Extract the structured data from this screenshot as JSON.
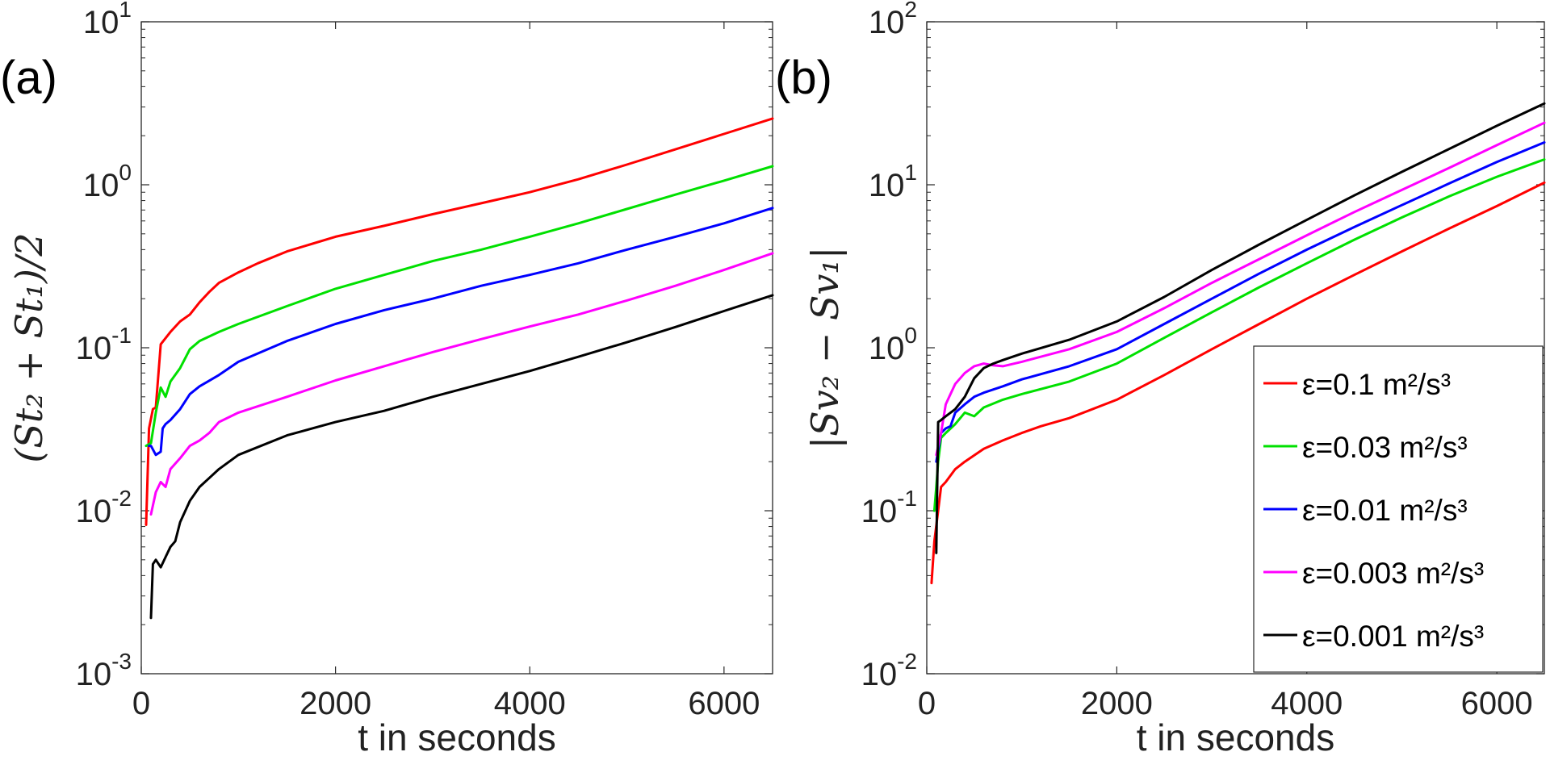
{
  "chart_data": [
    {
      "type": "line",
      "panel_label": "(a)",
      "xlabel": "t in seconds",
      "ylabel": "(St₂ + St₁)/2",
      "yscale": "log",
      "xlim": [
        0,
        6500
      ],
      "ylim": [
        0.001,
        10
      ],
      "x_ticks": [
        0,
        2000,
        4000,
        6000
      ],
      "x_tick_labels": [
        "0",
        "2000",
        "4000",
        "6000"
      ],
      "y_ticks": [
        0.001,
        0.01,
        0.1,
        1,
        10
      ],
      "y_tick_bases": [
        "10",
        "10",
        "10",
        "10",
        "10"
      ],
      "y_tick_exps": [
        "-3",
        "-2",
        "-1",
        "0",
        "1"
      ],
      "series": [
        {
          "name": "ε=0.1 m²/s³",
          "color": "#ff0000",
          "x": [
            50,
            80,
            120,
            150,
            200,
            300,
            400,
            500,
            600,
            700,
            800,
            1000,
            1200,
            1500,
            2000,
            2500,
            3000,
            3500,
            4000,
            4500,
            5000,
            5500,
            6000,
            6500
          ],
          "y": [
            0.0082,
            0.032,
            0.042,
            0.043,
            0.105,
            0.125,
            0.145,
            0.16,
            0.19,
            0.22,
            0.25,
            0.29,
            0.33,
            0.39,
            0.48,
            0.56,
            0.66,
            0.77,
            0.9,
            1.08,
            1.33,
            1.65,
            2.05,
            2.55
          ]
        },
        {
          "name": "ε=0.03 m²/s³",
          "color": "#00e000",
          "x": [
            50,
            100,
            150,
            200,
            250,
            300,
            400,
            500,
            600,
            800,
            1000,
            1500,
            2000,
            2500,
            3000,
            3500,
            4000,
            4500,
            5000,
            5500,
            6000,
            6500
          ],
          "y": [
            0.025,
            0.026,
            0.04,
            0.057,
            0.05,
            0.062,
            0.075,
            0.098,
            0.11,
            0.125,
            0.14,
            0.18,
            0.23,
            0.28,
            0.34,
            0.4,
            0.48,
            0.58,
            0.71,
            0.87,
            1.06,
            1.3
          ]
        },
        {
          "name": "ε=0.01 m²/s³",
          "color": "#0000ff",
          "x": [
            80,
            100,
            150,
            200,
            220,
            250,
            300,
            400,
            500,
            600,
            800,
            1000,
            1500,
            2000,
            2500,
            3000,
            3500,
            4000,
            4500,
            5000,
            5500,
            6000,
            6500
          ],
          "y": [
            0.025,
            0.025,
            0.022,
            0.023,
            0.032,
            0.034,
            0.036,
            0.042,
            0.052,
            0.058,
            0.068,
            0.082,
            0.11,
            0.14,
            0.17,
            0.2,
            0.24,
            0.28,
            0.33,
            0.4,
            0.48,
            0.58,
            0.72
          ]
        },
        {
          "name": "ε=0.003 m²/s³",
          "color": "#ff00ff",
          "x": [
            100,
            150,
            200,
            250,
            300,
            400,
            500,
            600,
            700,
            800,
            1000,
            1500,
            2000,
            2500,
            3000,
            3500,
            4000,
            4500,
            5000,
            5500,
            6000,
            6500
          ],
          "y": [
            0.0095,
            0.013,
            0.015,
            0.014,
            0.018,
            0.021,
            0.025,
            0.027,
            0.03,
            0.035,
            0.04,
            0.05,
            0.063,
            0.077,
            0.094,
            0.113,
            0.135,
            0.16,
            0.195,
            0.24,
            0.3,
            0.38
          ]
        },
        {
          "name": "ε=0.001 m²/s³",
          "color": "#000000",
          "x": [
            100,
            120,
            150,
            200,
            250,
            300,
            350,
            400,
            500,
            600,
            800,
            1000,
            1500,
            2000,
            2500,
            3000,
            3500,
            4000,
            4500,
            5000,
            5500,
            6000,
            6500
          ],
          "y": [
            0.0022,
            0.0047,
            0.005,
            0.0045,
            0.0052,
            0.006,
            0.0065,
            0.0085,
            0.0115,
            0.014,
            0.018,
            0.022,
            0.029,
            0.035,
            0.041,
            0.05,
            0.06,
            0.072,
            0.088,
            0.108,
            0.134,
            0.168,
            0.21
          ]
        }
      ]
    },
    {
      "type": "line",
      "panel_label": "(b)",
      "xlabel": "t in seconds",
      "ylabel": "|Sv₂ − Sv₁|",
      "yscale": "log",
      "xlim": [
        0,
        6500
      ],
      "ylim": [
        0.01,
        100
      ],
      "x_ticks": [
        0,
        2000,
        4000,
        6000
      ],
      "x_tick_labels": [
        "0",
        "2000",
        "4000",
        "6000"
      ],
      "y_ticks": [
        0.01,
        0.1,
        1,
        10,
        100
      ],
      "y_tick_bases": [
        "10",
        "10",
        "10",
        "10",
        "10"
      ],
      "y_tick_exps": [
        "-2",
        "-1",
        "0",
        "1",
        "2"
      ],
      "legend": {
        "position": "lower-right",
        "entries": [
          "ε=0.1 m²/s³",
          "ε=0.03 m²/s³",
          "ε=0.01 m²/s³",
          "ε=0.003 m²/s³",
          "ε=0.001 m²/s³"
        ]
      },
      "series": [
        {
          "name": "ε=0.1 m²/s³",
          "color": "#ff0000",
          "x": [
            50,
            80,
            120,
            150,
            200,
            300,
            400,
            600,
            800,
            1000,
            1200,
            1500,
            2000,
            2500,
            3000,
            3500,
            4000,
            4500,
            5000,
            5500,
            6000,
            6500
          ],
          "y": [
            0.036,
            0.065,
            0.1,
            0.14,
            0.15,
            0.18,
            0.2,
            0.24,
            0.27,
            0.3,
            0.33,
            0.37,
            0.48,
            0.68,
            0.98,
            1.4,
            2.0,
            2.8,
            3.9,
            5.4,
            7.4,
            10.3
          ]
        },
        {
          "name": "ε=0.03 m²/s³",
          "color": "#00e000",
          "x": [
            80,
            100,
            120,
            150,
            200,
            300,
            400,
            500,
            600,
            800,
            1000,
            1500,
            2000,
            2500,
            3000,
            3500,
            4000,
            4500,
            5000,
            5500,
            6000,
            6500
          ],
          "y": [
            0.1,
            0.14,
            0.2,
            0.28,
            0.3,
            0.34,
            0.4,
            0.38,
            0.43,
            0.48,
            0.52,
            0.62,
            0.8,
            1.15,
            1.65,
            2.35,
            3.3,
            4.6,
            6.3,
            8.5,
            11.2,
            14.3
          ]
        },
        {
          "name": "ε=0.01 m²/s³",
          "color": "#0000ff",
          "x": [
            100,
            150,
            200,
            250,
            300,
            400,
            500,
            600,
            800,
            1000,
            1500,
            2000,
            2500,
            3000,
            3500,
            4000,
            4500,
            5000,
            5500,
            6000,
            6500
          ],
          "y": [
            0.2,
            0.3,
            0.32,
            0.33,
            0.4,
            0.45,
            0.5,
            0.53,
            0.58,
            0.64,
            0.77,
            0.98,
            1.4,
            2.0,
            2.85,
            4.0,
            5.5,
            7.5,
            10.2,
            13.8,
            18.2
          ]
        },
        {
          "name": "ε=0.003 m²/s³",
          "color": "#ff00ff",
          "x": [
            100,
            150,
            200,
            250,
            300,
            400,
            500,
            600,
            700,
            800,
            1000,
            1500,
            2000,
            2500,
            3000,
            3500,
            4000,
            4500,
            5000,
            5500,
            6000,
            6500
          ],
          "y": [
            0.22,
            0.3,
            0.45,
            0.52,
            0.6,
            0.7,
            0.77,
            0.8,
            0.78,
            0.77,
            0.82,
            0.98,
            1.25,
            1.75,
            2.5,
            3.5,
            4.9,
            6.8,
            9.3,
            12.7,
            17.5,
            24
          ]
        },
        {
          "name": "ε=0.001 m²/s³",
          "color": "#000000",
          "x": [
            100,
            120,
            150,
            200,
            300,
            400,
            500,
            600,
            700,
            800,
            1000,
            1500,
            2000,
            2500,
            3000,
            3500,
            4000,
            4500,
            5000,
            5500,
            6000,
            6500
          ],
          "y": [
            0.055,
            0.35,
            0.36,
            0.38,
            0.42,
            0.5,
            0.65,
            0.75,
            0.8,
            0.84,
            0.92,
            1.12,
            1.45,
            2.05,
            3.0,
            4.3,
            6.1,
            8.6,
            12.0,
            16.6,
            23.0,
            31.5
          ]
        }
      ]
    }
  ]
}
